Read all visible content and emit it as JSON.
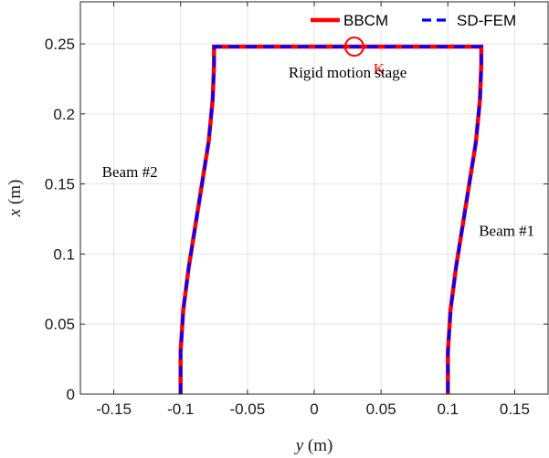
{
  "chart_data": {
    "type": "line",
    "xlabel_var": "y",
    "xlabel_unit": " (m)",
    "ylabel_var": "x",
    "ylabel_unit": " (m)",
    "xlim": [
      -0.175,
      0.175
    ],
    "ylim": [
      0,
      0.28
    ],
    "grid": true,
    "legend_position": "top-right",
    "x_ticks": [
      -0.15,
      -0.1,
      -0.05,
      0,
      0.05,
      0.1,
      0.15
    ],
    "x_tick_labels": [
      "-0.15",
      "-0.1",
      "-0.05",
      "0",
      "0.05",
      "0.1",
      "0.15"
    ],
    "y_ticks": [
      0,
      0.05,
      0.1,
      0.15,
      0.2,
      0.25
    ],
    "y_tick_labels": [
      "0",
      "0.05",
      "0.1",
      "0.15",
      "0.2",
      "0.25"
    ],
    "series": [
      {
        "name": "BBCM",
        "color": "#ff0000",
        "style": "solid",
        "path": [
          [
            -0.1,
            0
          ],
          [
            -0.1,
            0.03
          ],
          [
            -0.098,
            0.06
          ],
          [
            -0.094,
            0.09
          ],
          [
            -0.089,
            0.12
          ],
          [
            -0.084,
            0.15
          ],
          [
            -0.079,
            0.18
          ],
          [
            -0.076,
            0.21
          ],
          [
            -0.075,
            0.235
          ],
          [
            -0.075,
            0.248
          ],
          [
            0.125,
            0.248
          ],
          [
            0.125,
            0.235
          ],
          [
            0.124,
            0.21
          ],
          [
            0.121,
            0.18
          ],
          [
            0.116,
            0.15
          ],
          [
            0.111,
            0.12
          ],
          [
            0.106,
            0.09
          ],
          [
            0.102,
            0.06
          ],
          [
            0.1,
            0.03
          ],
          [
            0.1,
            0
          ]
        ]
      },
      {
        "name": "SD-FEM",
        "color": "#0000ff",
        "style": "dashed",
        "path": [
          [
            -0.1,
            0
          ],
          [
            -0.1,
            0.03
          ],
          [
            -0.098,
            0.06
          ],
          [
            -0.094,
            0.09
          ],
          [
            -0.089,
            0.12
          ],
          [
            -0.084,
            0.15
          ],
          [
            -0.079,
            0.18
          ],
          [
            -0.076,
            0.21
          ],
          [
            -0.075,
            0.235
          ],
          [
            -0.075,
            0.248
          ],
          [
            0.125,
            0.248
          ],
          [
            0.125,
            0.235
          ],
          [
            0.124,
            0.21
          ],
          [
            0.121,
            0.18
          ],
          [
            0.116,
            0.15
          ],
          [
            0.111,
            0.12
          ],
          [
            0.106,
            0.09
          ],
          [
            0.102,
            0.06
          ],
          [
            0.1,
            0.03
          ],
          [
            0.1,
            0
          ]
        ]
      }
    ],
    "marker": {
      "label": "K",
      "x": 0.03,
      "y": 0.248,
      "color": "#ff0000"
    },
    "annotations": [
      {
        "text": "Rigid motion stage",
        "x": 0.025,
        "y": 0.226
      },
      {
        "text": "Beam #2",
        "x": -0.138,
        "y": 0.155
      },
      {
        "text": "Beam #1",
        "x": 0.144,
        "y": 0.113
      }
    ]
  }
}
